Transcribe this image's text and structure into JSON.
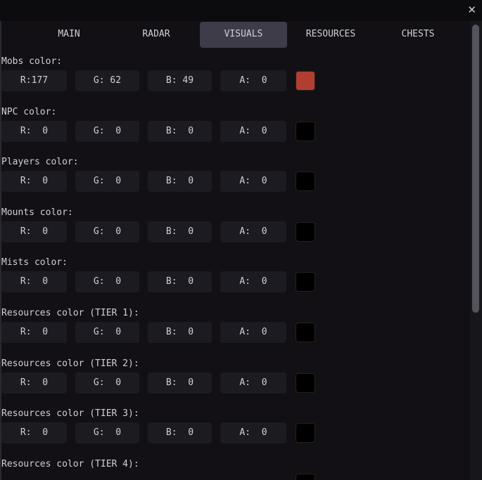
{
  "window": {
    "close_icon": "close-icon"
  },
  "tabs": [
    {
      "label": "MAIN"
    },
    {
      "label": "RADAR"
    },
    {
      "label": "VISUALS",
      "active": true
    },
    {
      "label": "RESOURCES"
    },
    {
      "label": "CHESTS"
    }
  ],
  "sections": [
    {
      "label": "Mobs color:",
      "r": "R:177",
      "g": "G: 62",
      "b": "B: 49",
      "a": "A:  0",
      "color": "#b13e31"
    },
    {
      "label": "NPC color:",
      "r": "R:  0",
      "g": "G:  0",
      "b": "B:  0",
      "a": "A:  0",
      "color": "#000000"
    },
    {
      "label": "Players color:",
      "r": "R:  0",
      "g": "G:  0",
      "b": "B:  0",
      "a": "A:  0",
      "color": "#000000"
    },
    {
      "label": "Mounts color:",
      "r": "R:  0",
      "g": "G:  0",
      "b": "B:  0",
      "a": "A:  0",
      "color": "#000000"
    },
    {
      "label": "Mists color:",
      "r": "R:  0",
      "g": "G:  0",
      "b": "B:  0",
      "a": "A:  0",
      "color": "#000000"
    },
    {
      "label": "Resources color (TIER 1):",
      "r": "R:  0",
      "g": "G:  0",
      "b": "B:  0",
      "a": "A:  0",
      "color": "#000000"
    },
    {
      "label": "Resources color (TIER 2):",
      "r": "R:  0",
      "g": "G:  0",
      "b": "B:  0",
      "a": "A:  0",
      "color": "#000000"
    },
    {
      "label": "Resources color (TIER 3):",
      "r": "R:  0",
      "g": "G:  0",
      "b": "B:  0",
      "a": "A:  0",
      "color": "#000000"
    },
    {
      "label": "Resources color (TIER 4):",
      "color": "#000000"
    }
  ]
}
